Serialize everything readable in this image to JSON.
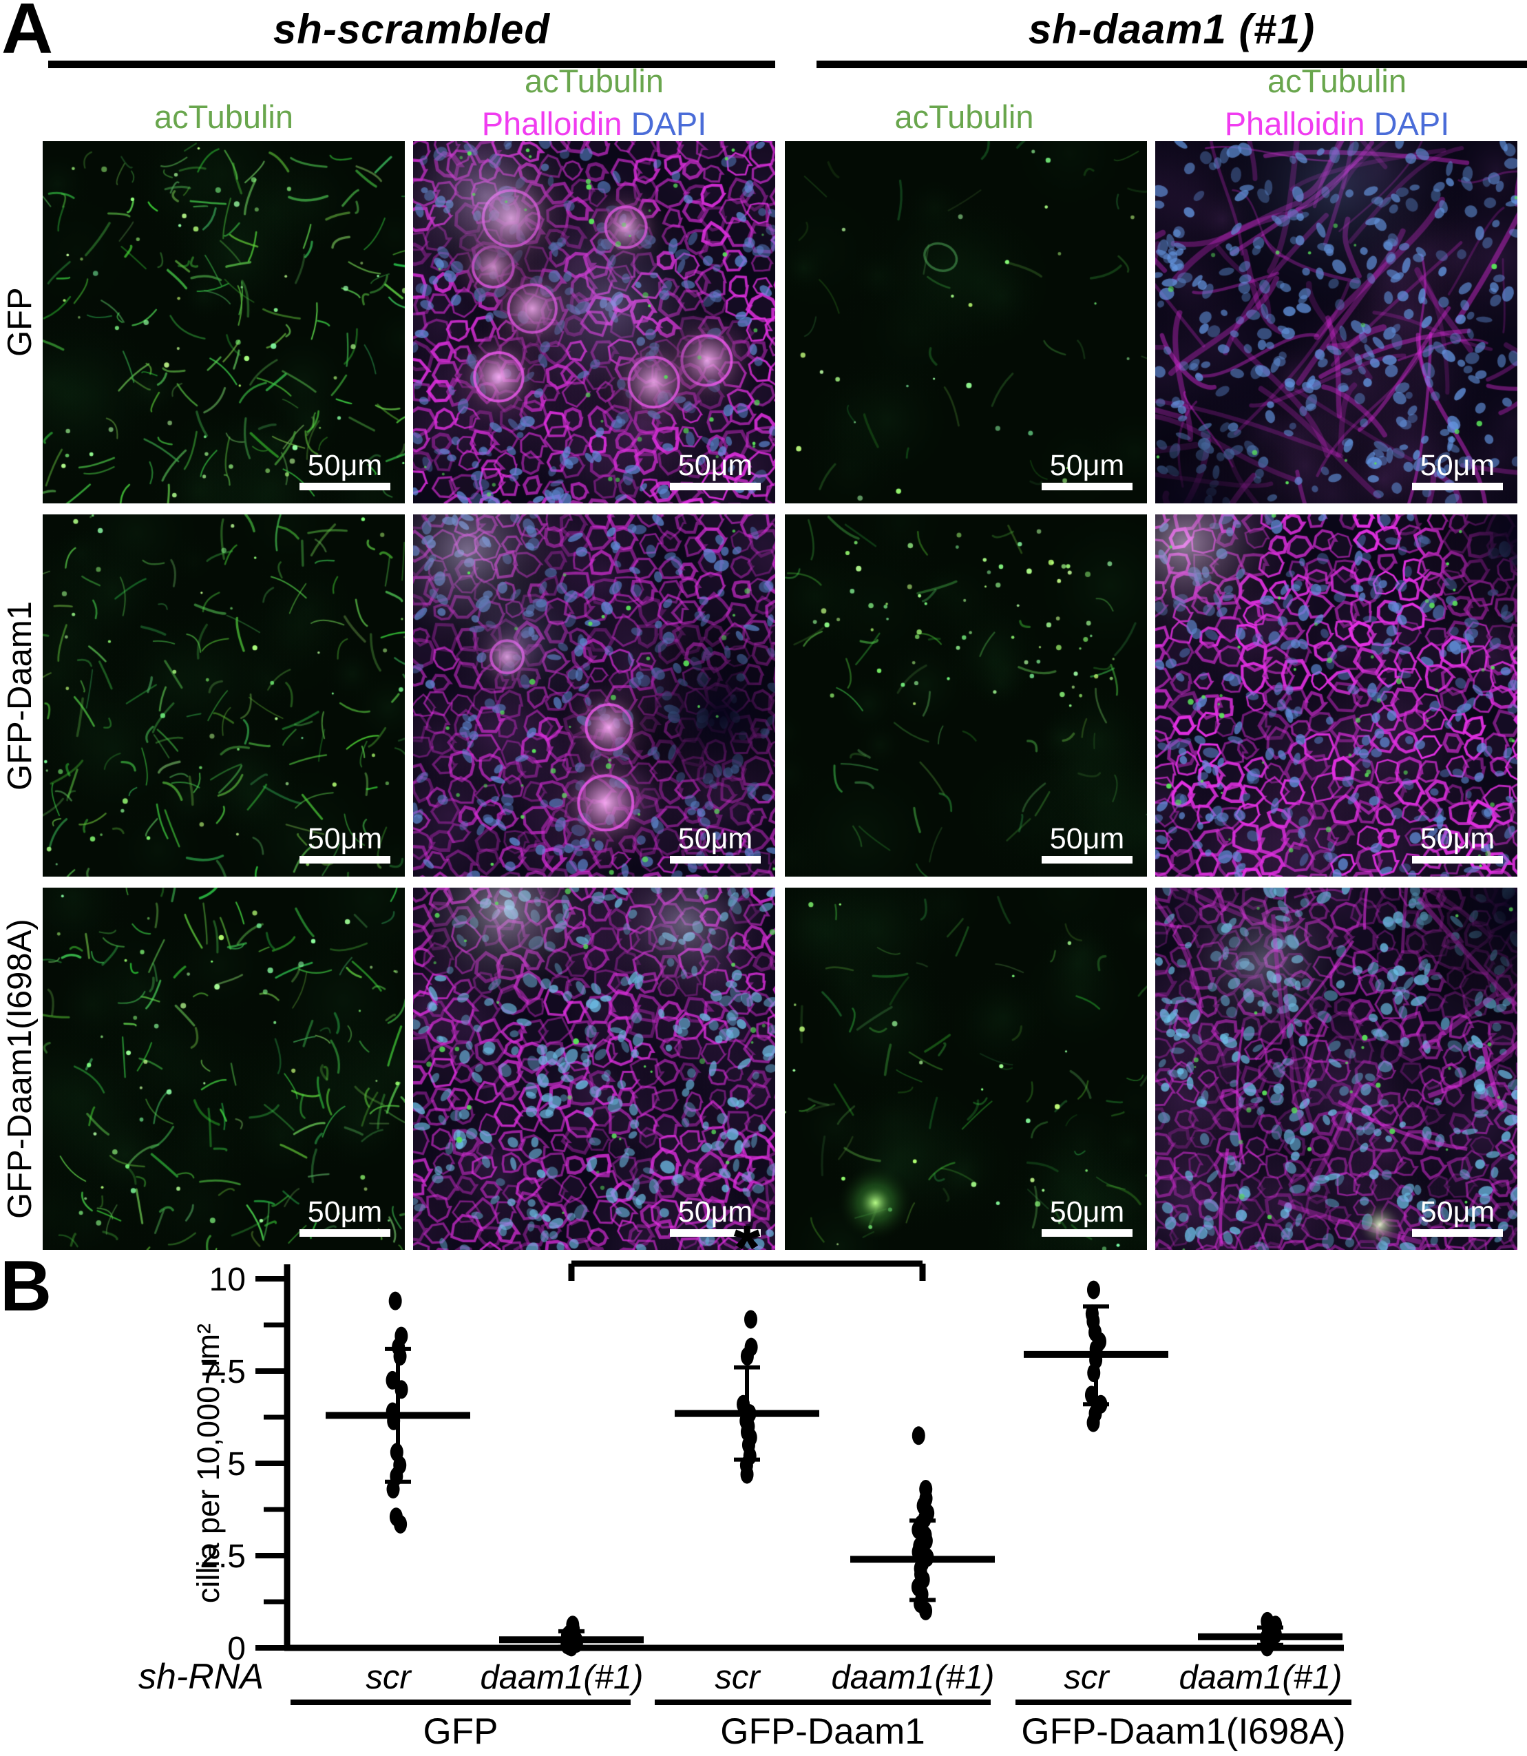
{
  "panel_a": {
    "label": "A",
    "scale_bar": "50μm",
    "colors": {
      "actubulin_green": "#69a64d",
      "phalloidin_magenta": "#f03cf0",
      "dapi_blue": "#4a6cd8"
    },
    "group_headers": [
      {
        "title": "sh-scrambled"
      },
      {
        "title": "sh-daam1 (#1)"
      }
    ],
    "channel_labels": {
      "actubulin": "acTubulin",
      "phalloidin": "Phalloidin",
      "dapi": "DAPI"
    },
    "row_labels": [
      "GFP",
      "GFP-Daam1",
      "GFP-Daam1(I698A)"
    ],
    "tiles": [
      {
        "row": 0,
        "col": 0,
        "construct": "GFP",
        "shrna": "sh-scrambled",
        "channel": "acTubulin",
        "kind": "green-bright"
      },
      {
        "row": 0,
        "col": 1,
        "construct": "GFP",
        "shrna": "sh-scrambled",
        "channel": "acTubulin Phalloidin DAPI",
        "kind": "merged-rosette"
      },
      {
        "row": 0,
        "col": 2,
        "construct": "GFP",
        "shrna": "sh-daam1 (#1)",
        "channel": "acTubulin",
        "kind": "green-dark"
      },
      {
        "row": 0,
        "col": 3,
        "construct": "GFP",
        "shrna": "sh-daam1 (#1)",
        "channel": "acTubulin Phalloidin DAPI",
        "kind": "merged-streaky"
      },
      {
        "row": 1,
        "col": 0,
        "construct": "GFP-Daam1",
        "shrna": "sh-scrambled",
        "channel": "acTubulin",
        "kind": "green-bright2"
      },
      {
        "row": 1,
        "col": 1,
        "construct": "GFP-Daam1",
        "shrna": "sh-scrambled",
        "channel": "acTubulin Phalloidin DAPI",
        "kind": "merged-mixed"
      },
      {
        "row": 1,
        "col": 2,
        "construct": "GFP-Daam1",
        "shrna": "sh-daam1 (#1)",
        "channel": "acTubulin",
        "kind": "green-specks"
      },
      {
        "row": 1,
        "col": 3,
        "construct": "GFP-Daam1",
        "shrna": "sh-daam1 (#1)",
        "channel": "acTubulin Phalloidin DAPI",
        "kind": "merged-mosaic-corner"
      },
      {
        "row": 2,
        "col": 0,
        "construct": "GFP-Daam1(I698A)",
        "shrna": "sh-scrambled",
        "channel": "acTubulin",
        "kind": "green-bright3"
      },
      {
        "row": 2,
        "col": 1,
        "construct": "GFP-Daam1(I698A)",
        "shrna": "sh-scrambled",
        "channel": "acTubulin Phalloidin DAPI",
        "kind": "merged-cyan"
      },
      {
        "row": 2,
        "col": 2,
        "construct": "GFP-Daam1(I698A)",
        "shrna": "sh-daam1 (#1)",
        "channel": "acTubulin",
        "kind": "green-blob"
      },
      {
        "row": 2,
        "col": 3,
        "construct": "GFP-Daam1(I698A)",
        "shrna": "sh-daam1 (#1)",
        "channel": "acTubulin Phalloidin DAPI",
        "kind": "merged-cyan-corner"
      }
    ]
  },
  "panel_b": {
    "label": "B",
    "chart_data": {
      "type": "scatter",
      "ylabel": "cillia per 10,000 μm²",
      "xlabel_prefix": "sh-RNA",
      "ylim": [
        0,
        10
      ],
      "yticks": [
        0,
        2.5,
        5,
        7.5,
        10
      ],
      "ytick_labels": [
        "0",
        "2.5",
        "5",
        "7.5",
        "10"
      ],
      "minor_yticks": [
        1.25,
        3.75,
        6.25,
        8.75
      ],
      "grid": false,
      "point_color": "#000000",
      "groups": [
        {
          "shrna": "scr",
          "construct": "GFP",
          "mean": 6.3,
          "err_lo": 4.5,
          "err_hi": 8.1,
          "points": [
            9.4,
            8.45,
            8.15,
            7.9,
            7.25,
            7.0,
            6.4,
            6.15,
            5.3,
            4.95,
            4.65,
            4.3,
            3.55,
            3.35
          ]
        },
        {
          "shrna": "daam1(#1)",
          "construct": "GFP",
          "mean": 0.22,
          "err_lo": 0.03,
          "err_hi": 0.45,
          "points": [
            0.62,
            0.5,
            0.44,
            0.38,
            0.33,
            0.28,
            0.24,
            0.2,
            0.16,
            0.12,
            0.08,
            0.05,
            0.02
          ]
        },
        {
          "shrna": "scr",
          "construct": "GFP-Daam1",
          "mean": 6.35,
          "err_lo": 5.1,
          "err_hi": 7.6,
          "points": [
            8.9,
            8.15,
            7.9,
            6.6,
            6.35,
            6.15,
            6.0,
            5.85,
            5.7,
            5.5,
            5.2,
            4.95,
            4.7
          ]
        },
        {
          "shrna": "daam1(#1)",
          "construct": "GFP-Daam1",
          "mean": 2.4,
          "err_lo": 1.3,
          "err_hi": 3.45,
          "points": [
            5.75,
            4.3,
            4.05,
            3.85,
            3.65,
            3.5,
            3.35,
            3.2,
            3.05,
            2.9,
            2.75,
            2.6,
            2.45,
            2.3,
            2.15,
            2.0,
            1.85,
            1.65,
            1.45,
            1.2,
            1.0
          ]
        },
        {
          "shrna": "scr",
          "construct": "GFP-Daam1(I698A)",
          "mean": 7.95,
          "err_lo": 6.6,
          "err_hi": 9.25,
          "points": [
            9.7,
            9.05,
            8.85,
            8.55,
            8.3,
            8.1,
            7.8,
            7.45,
            6.85,
            6.6,
            6.35,
            6.1
          ]
        },
        {
          "shrna": "daam1(#1)",
          "construct": "GFP-Daam1(I698A)",
          "mean": 0.3,
          "err_lo": 0.08,
          "err_hi": 0.55,
          "points": [
            0.72,
            0.62,
            0.54,
            0.48,
            0.42,
            0.36,
            0.3,
            0.26,
            0.2,
            0.15,
            0.1,
            0.06,
            0.02
          ]
        }
      ],
      "construct_groups": [
        {
          "label": "GFP",
          "spans_groups": [
            0,
            1
          ]
        },
        {
          "label": "GFP-Daam1",
          "spans_groups": [
            2,
            3
          ]
        },
        {
          "label": "GFP-Daam1(I698A)",
          "spans_groups": [
            4,
            5
          ]
        }
      ],
      "significance": {
        "label": "*",
        "between_groups": [
          1,
          3
        ]
      }
    }
  }
}
